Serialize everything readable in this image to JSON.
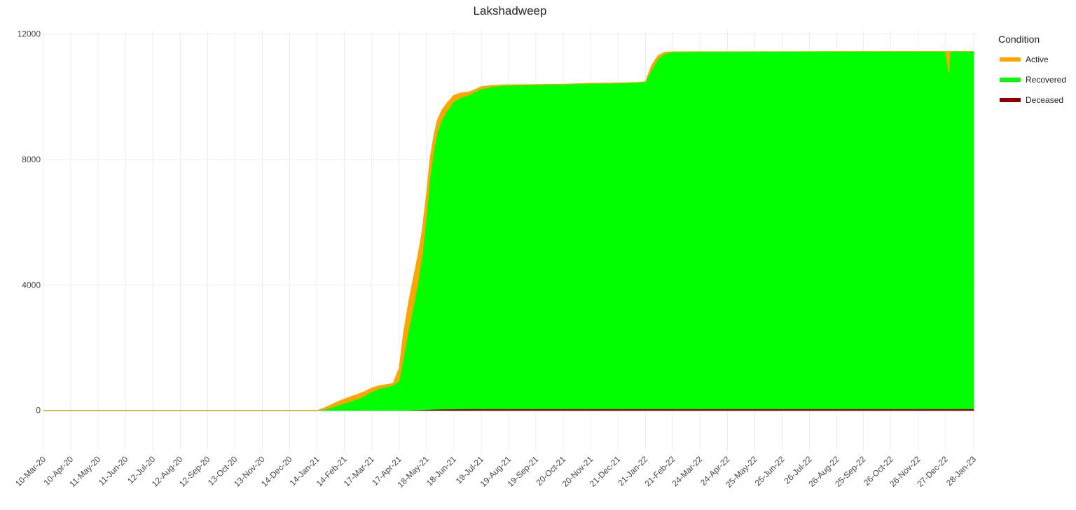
{
  "chart_data": {
    "type": "area",
    "title": "Lakshadweep",
    "xlabel": "",
    "ylabel": "",
    "ylim": [
      -1300,
      12100
    ],
    "yticks": [
      0,
      4000,
      8000,
      12000
    ],
    "x_ticks": [
      "10-Mar-20",
      "10-Apr-20",
      "11-May-20",
      "11-Jun-20",
      "12-Jul-20",
      "12-Aug-20",
      "12-Sep-20",
      "13-Oct-20",
      "13-Nov-20",
      "14-Dec-20",
      "14-Jan-21",
      "14-Feb-21",
      "17-Mar-21",
      "17-Apr-21",
      "18-May-21",
      "18-Jun-21",
      "19-Jul-21",
      "19-Aug-21",
      "19-Sep-21",
      "20-Oct-21",
      "20-Nov-21",
      "21-Dec-21",
      "21-Jan-22",
      "21-Feb-22",
      "24-Mar-22",
      "24-Apr-22",
      "25-May-22",
      "25-Jun-22",
      "26-Jul-22",
      "26-Aug-22",
      "25-Sep-22",
      "26-Oct-22",
      "26-Nov-22",
      "27-Dec-22",
      "28-Jan-23"
    ],
    "legend": {
      "title": "Condition",
      "position": "right"
    },
    "grid": true,
    "stacking_order": [
      "Deceased",
      "Recovered",
      "Active"
    ],
    "dates": [
      "10-Mar-20",
      "14-Jan-21",
      "20-Jan-21",
      "26-Jan-21",
      "1-Feb-21",
      "7-Feb-21",
      "14-Feb-21",
      "22-Feb-21",
      "1-Mar-21",
      "8-Mar-21",
      "17-Mar-21",
      "24-Mar-21",
      "1-Apr-21",
      "10-Apr-21",
      "17-Apr-21",
      "22-Apr-21",
      "28-Apr-21",
      "3-May-21",
      "8-May-21",
      "13-May-21",
      "18-May-21",
      "22-May-21",
      "26-May-21",
      "30-May-21",
      "4-Jun-21",
      "10-Jun-21",
      "18-Jun-21",
      "26-Jun-21",
      "5-Jul-21",
      "12-Jul-21",
      "19-Jul-21",
      "29-Jul-21",
      "8-Aug-21",
      "19-Aug-21",
      "5-Sep-21",
      "19-Sep-21",
      "20-Oct-21",
      "20-Nov-21",
      "21-Dec-21",
      "12-Jan-22",
      "21-Jan-22",
      "28-Jan-22",
      "4-Feb-22",
      "12-Feb-22",
      "21-Feb-22",
      "24-Mar-22",
      "27-Dec-22",
      "31-Dec-22",
      "1-Jan-23",
      "3-Jan-23",
      "28-Jan-23"
    ],
    "series": [
      {
        "name": "Deceased",
        "color": "#8b0000",
        "values": [
          0,
          0,
          0,
          0,
          0,
          0,
          0,
          0,
          1,
          1,
          1,
          1,
          1,
          1,
          1,
          3,
          6,
          10,
          15,
          20,
          25,
          30,
          35,
          38,
          40,
          45,
          48,
          50,
          51,
          51,
          51,
          51,
          51,
          51,
          51,
          51,
          51,
          51,
          51,
          51,
          51,
          51,
          52,
          52,
          52,
          52,
          52,
          52,
          52,
          52,
          52
        ]
      },
      {
        "name": "Recovered",
        "color": "#00ff00",
        "values": [
          0,
          0,
          20,
          60,
          110,
          170,
          230,
          300,
          370,
          450,
          600,
          680,
          740,
          800,
          950,
          1700,
          2600,
          3300,
          4000,
          4900,
          6200,
          7400,
          8200,
          8800,
          9200,
          9500,
          9800,
          9920,
          10000,
          10100,
          10200,
          10250,
          10290,
          10310,
          10320,
          10330,
          10340,
          10370,
          10380,
          10400,
          10420,
          10800,
          11150,
          11320,
          11370,
          11380,
          11390,
          11390,
          11390,
          11390,
          11390
        ]
      },
      {
        "name": "Active",
        "color": "#ffa500",
        "values": [
          0,
          0,
          40,
          70,
          100,
          120,
          140,
          150,
          150,
          140,
          120,
          100,
          80,
          60,
          400,
          800,
          900,
          900,
          900,
          800,
          700,
          600,
          500,
          400,
          320,
          250,
          200,
          150,
          100,
          80,
          70,
          50,
          30,
          20,
          15,
          10,
          10,
          8,
          8,
          6,
          10,
          150,
          100,
          50,
          10,
          5,
          3,
          -700,
          -50,
          3,
          3
        ]
      }
    ]
  }
}
